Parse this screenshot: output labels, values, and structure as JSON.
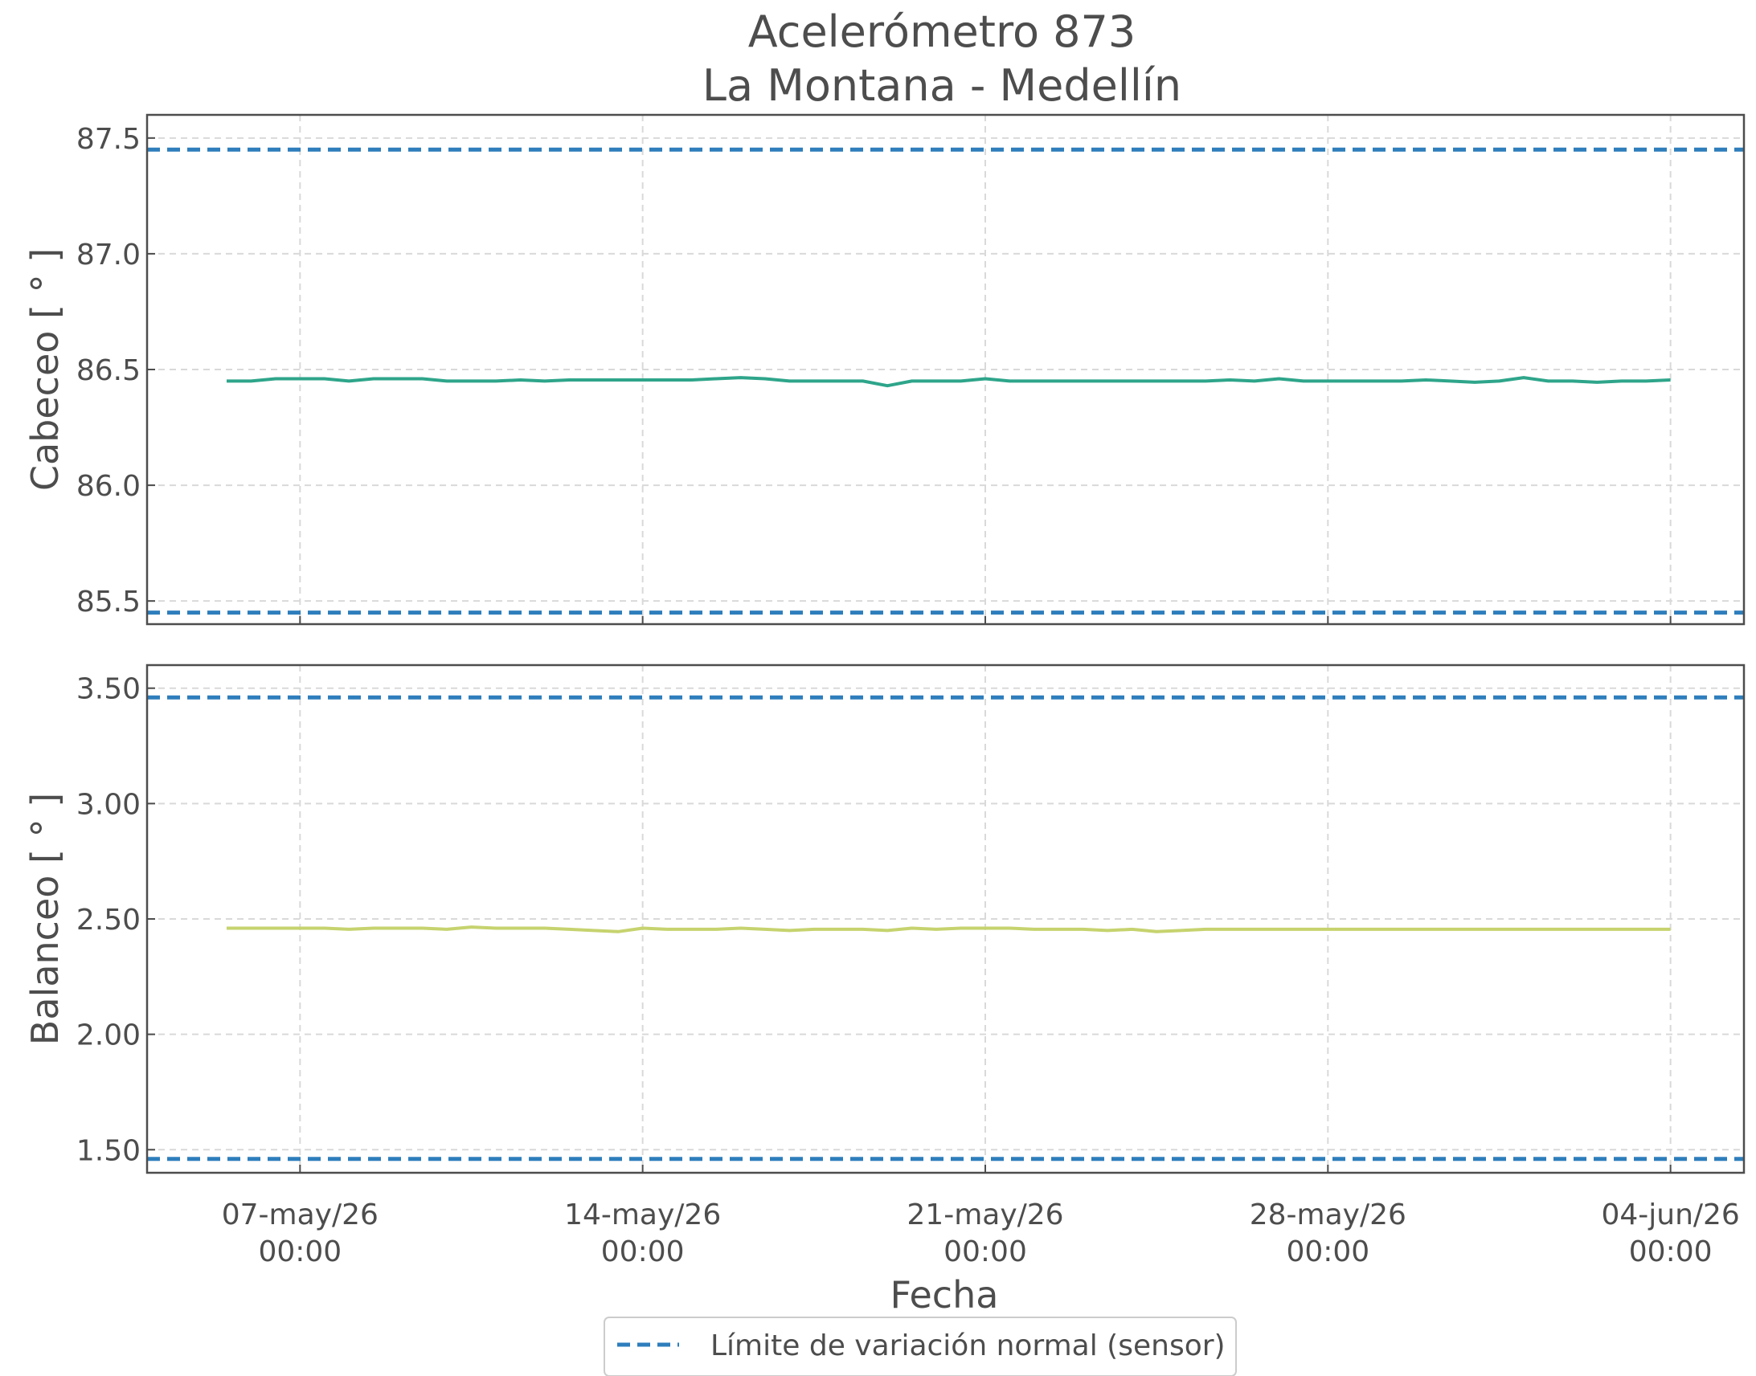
{
  "chart_data": {
    "type": "line",
    "title_lines": [
      "Acelerómetro 873",
      "La Montana - Medellín"
    ],
    "xlabel": "Fecha",
    "x_ticks": [
      {
        "date": "2026-05-07T00:00",
        "line1": "07-may/26",
        "line2": "00:00"
      },
      {
        "date": "2026-05-14T00:00",
        "line1": "14-may/26",
        "line2": "00:00"
      },
      {
        "date": "2026-05-21T00:00",
        "line1": "21-may/26",
        "line2": "00:00"
      },
      {
        "date": "2026-05-28T00:00",
        "line1": "28-may/26",
        "line2": "00:00"
      },
      {
        "date": "2026-06-04T00:00",
        "line1": "04-jun/26",
        "line2": "00:00"
      }
    ],
    "xlim": [
      "2026-05-03T21:00",
      "2026-06-05T12:00"
    ],
    "grid": true,
    "legend": {
      "placement": "bottom-center",
      "label": "Límite de variación normal (sensor)"
    },
    "limit_color": "#2e7ebc",
    "panels": [
      {
        "ylabel": "Cabeceo [ ° ]",
        "ylim": [
          85.4,
          87.6
        ],
        "yticks": [
          85.5,
          86.0,
          86.5,
          87.0,
          87.5
        ],
        "ytick_labels": [
          "85.5",
          "86.0",
          "86.5",
          "87.0",
          "87.5"
        ],
        "limits": [
          85.45,
          87.45
        ],
        "color": "#2ea58a",
        "series": {
          "x": [
            "2026-05-05T12:00",
            "2026-05-06T00:00",
            "2026-05-06T12:00",
            "2026-05-07T00:00",
            "2026-05-07T12:00",
            "2026-05-08T00:00",
            "2026-05-08T12:00",
            "2026-05-09T00:00",
            "2026-05-09T12:00",
            "2026-05-10T00:00",
            "2026-05-10T12:00",
            "2026-05-11T00:00",
            "2026-05-11T12:00",
            "2026-05-12T00:00",
            "2026-05-12T12:00",
            "2026-05-13T00:00",
            "2026-05-13T12:00",
            "2026-05-14T00:00",
            "2026-05-14T12:00",
            "2026-05-15T00:00",
            "2026-05-15T12:00",
            "2026-05-16T00:00",
            "2026-05-16T12:00",
            "2026-05-17T00:00",
            "2026-05-17T12:00",
            "2026-05-18T00:00",
            "2026-05-18T12:00",
            "2026-05-19T00:00",
            "2026-05-19T12:00",
            "2026-05-20T00:00",
            "2026-05-20T12:00",
            "2026-05-21T00:00",
            "2026-05-21T12:00",
            "2026-05-22T00:00",
            "2026-05-22T12:00",
            "2026-05-23T00:00",
            "2026-05-23T12:00",
            "2026-05-24T00:00",
            "2026-05-24T12:00",
            "2026-05-25T00:00",
            "2026-05-25T12:00",
            "2026-05-26T00:00",
            "2026-05-26T12:00",
            "2026-05-27T00:00",
            "2026-05-27T12:00",
            "2026-05-28T00:00",
            "2026-05-28T12:00",
            "2026-05-29T00:00",
            "2026-05-29T12:00",
            "2026-05-30T00:00",
            "2026-05-30T12:00",
            "2026-05-31T00:00",
            "2026-05-31T12:00",
            "2026-06-01T00:00",
            "2026-06-01T12:00",
            "2026-06-02T00:00",
            "2026-06-02T12:00",
            "2026-06-03T00:00",
            "2026-06-03T12:00",
            "2026-06-04T00:00"
          ],
          "y": [
            86.45,
            86.45,
            86.46,
            86.46,
            86.46,
            86.45,
            86.46,
            86.46,
            86.46,
            86.45,
            86.45,
            86.45,
            86.455,
            86.45,
            86.455,
            86.455,
            86.455,
            86.455,
            86.455,
            86.455,
            86.46,
            86.465,
            86.46,
            86.45,
            86.45,
            86.45,
            86.45,
            86.43,
            86.45,
            86.45,
            86.45,
            86.46,
            86.45,
            86.45,
            86.45,
            86.45,
            86.45,
            86.45,
            86.45,
            86.45,
            86.45,
            86.455,
            86.45,
            86.46,
            86.45,
            86.45,
            86.45,
            86.45,
            86.45,
            86.455,
            86.45,
            86.445,
            86.45,
            86.465,
            86.45,
            86.45,
            86.445,
            86.45,
            86.45,
            86.455
          ]
        }
      },
      {
        "ylabel": "Balanceo [ ° ]",
        "ylim": [
          1.4,
          3.6
        ],
        "yticks": [
          1.5,
          2.0,
          2.5,
          3.0,
          3.5
        ],
        "ytick_labels": [
          "1.50",
          "2.00",
          "2.50",
          "3.00",
          "3.50"
        ],
        "limits": [
          1.46,
          3.46
        ],
        "color": "#c6d36e",
        "series": {
          "x": [
            "2026-05-05T12:00",
            "2026-05-06T00:00",
            "2026-05-06T12:00",
            "2026-05-07T00:00",
            "2026-05-07T12:00",
            "2026-05-08T00:00",
            "2026-05-08T12:00",
            "2026-05-09T00:00",
            "2026-05-09T12:00",
            "2026-05-10T00:00",
            "2026-05-10T12:00",
            "2026-05-11T00:00",
            "2026-05-11T12:00",
            "2026-05-12T00:00",
            "2026-05-12T12:00",
            "2026-05-13T00:00",
            "2026-05-13T12:00",
            "2026-05-14T00:00",
            "2026-05-14T12:00",
            "2026-05-15T00:00",
            "2026-05-15T12:00",
            "2026-05-16T00:00",
            "2026-05-16T12:00",
            "2026-05-17T00:00",
            "2026-05-17T12:00",
            "2026-05-18T00:00",
            "2026-05-18T12:00",
            "2026-05-19T00:00",
            "2026-05-19T12:00",
            "2026-05-20T00:00",
            "2026-05-20T12:00",
            "2026-05-21T00:00",
            "2026-05-21T12:00",
            "2026-05-22T00:00",
            "2026-05-22T12:00",
            "2026-05-23T00:00",
            "2026-05-23T12:00",
            "2026-05-24T00:00",
            "2026-05-24T12:00",
            "2026-05-25T00:00",
            "2026-05-25T12:00",
            "2026-05-26T00:00",
            "2026-05-26T12:00",
            "2026-05-27T00:00",
            "2026-05-27T12:00",
            "2026-05-28T00:00",
            "2026-05-28T12:00",
            "2026-05-29T00:00",
            "2026-05-29T12:00",
            "2026-05-30T00:00",
            "2026-05-30T12:00",
            "2026-05-31T00:00",
            "2026-05-31T12:00",
            "2026-06-01T00:00",
            "2026-06-01T12:00",
            "2026-06-02T00:00",
            "2026-06-02T12:00",
            "2026-06-03T00:00",
            "2026-06-03T12:00",
            "2026-06-04T00:00"
          ],
          "y": [
            2.46,
            2.46,
            2.46,
            2.46,
            2.46,
            2.455,
            2.46,
            2.46,
            2.46,
            2.455,
            2.465,
            2.46,
            2.46,
            2.46,
            2.455,
            2.45,
            2.445,
            2.46,
            2.455,
            2.455,
            2.455,
            2.46,
            2.455,
            2.45,
            2.455,
            2.455,
            2.455,
            2.45,
            2.46,
            2.455,
            2.46,
            2.46,
            2.46,
            2.455,
            2.455,
            2.455,
            2.45,
            2.455,
            2.445,
            2.45,
            2.455,
            2.455,
            2.455,
            2.455,
            2.455,
            2.455,
            2.455,
            2.455,
            2.455,
            2.455,
            2.455,
            2.455,
            2.455,
            2.455,
            2.455,
            2.455,
            2.455,
            2.455,
            2.455,
            2.455
          ]
        }
      }
    ]
  }
}
